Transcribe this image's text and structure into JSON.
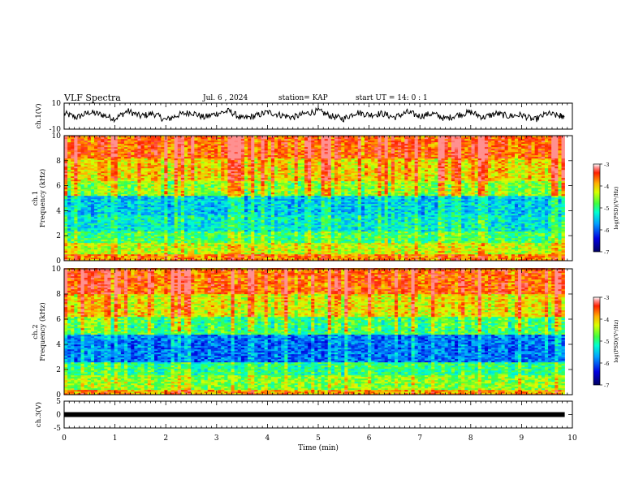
{
  "header": {
    "title": "VLF Spectra",
    "date": "Jul. 6 , 2024",
    "station": "station= KAP",
    "start": "start UT =  14: 0 : 1"
  },
  "colors": {
    "colormap": [
      "#000060",
      "#0000d8",
      "#0050ff",
      "#00c8ff",
      "#00ffd0",
      "#40ff40",
      "#c8ff00",
      "#ffd000",
      "#ff5000",
      "#e00000",
      "#ffffff"
    ]
  },
  "chart_data": [
    {
      "id": "ch1_waveform",
      "type": "line",
      "ylabel": "ch.1(V)",
      "ylim": [
        -10,
        10
      ],
      "yticks": [
        "10",
        "-10"
      ],
      "xlim": [
        0,
        10
      ],
      "x": [
        0,
        0.25,
        0.5,
        0.75,
        1,
        1.25,
        1.5,
        1.75,
        2,
        2.25,
        2.5,
        2.75,
        3,
        3.25,
        3.5,
        3.75,
        4,
        4.25,
        4.5,
        4.75,
        5,
        5.25,
        5.5,
        5.75,
        6,
        6.25,
        6.5,
        6.75,
        7,
        7.25,
        7.5,
        7.75,
        8,
        8.25,
        8.5,
        8.75,
        9,
        9.25,
        9.5,
        9.75
      ],
      "y": [
        2,
        -1,
        3,
        1,
        -2,
        4,
        0,
        2,
        -3,
        1,
        3,
        -1,
        2,
        4,
        -2,
        0,
        3,
        1,
        -1,
        2,
        4,
        0,
        -2,
        3,
        1,
        2,
        -1,
        3,
        0,
        2,
        -2,
        1,
        3,
        -1,
        2,
        0,
        1,
        -3,
        2,
        0
      ]
    },
    {
      "id": "ch1_spectrogram",
      "type": "heatmap",
      "ylabel": "ch.1\nFrequency (kHz)",
      "ylim": [
        0,
        10
      ],
      "yticks": [
        "0",
        "2",
        "4",
        "6",
        "8",
        "10"
      ],
      "xlim": [
        0,
        10
      ],
      "colorbar": {
        "label": "log(PSD)(V²/Hz)",
        "range": [
          -7,
          -3
        ],
        "ticks": [
          "-3",
          "-4",
          "-5",
          "-6",
          "-7"
        ]
      },
      "freq_bands": [
        {
          "f": [
            0,
            0.5
          ],
          "level": -3.8
        },
        {
          "f": [
            0.5,
            1.4
          ],
          "level": -4.4
        },
        {
          "f": [
            1.4,
            2.4
          ],
          "level": -4.9
        },
        {
          "f": [
            2.4,
            3.6
          ],
          "level": -5.3
        },
        {
          "f": [
            3.6,
            5.2
          ],
          "level": -5.5
        },
        {
          "f": [
            5.2,
            6.4
          ],
          "level": -4.6
        },
        {
          "f": [
            6.4,
            8.2
          ],
          "level": -4.1
        },
        {
          "f": [
            8.2,
            10
          ],
          "level": -3.6
        }
      ]
    },
    {
      "id": "ch2_spectrogram",
      "type": "heatmap",
      "ylabel": "ch.2\nFrequency (kHz)",
      "ylim": [
        0,
        10
      ],
      "yticks": [
        "0",
        "2",
        "4",
        "6",
        "8",
        "10"
      ],
      "xlim": [
        0,
        10
      ],
      "colorbar": {
        "label": "log(PSD)(V²/Hz)",
        "range": [
          -7,
          -3
        ],
        "ticks": [
          "-3",
          "-4",
          "-5",
          "-6",
          "-7"
        ]
      },
      "freq_bands": [
        {
          "f": [
            0,
            0.4
          ],
          "level": -3.9
        },
        {
          "f": [
            0.4,
            1.6
          ],
          "level": -4.6
        },
        {
          "f": [
            1.6,
            2.6
          ],
          "level": -5.0
        },
        {
          "f": [
            2.6,
            4.8
          ],
          "level": -5.9
        },
        {
          "f": [
            4.8,
            6.2
          ],
          "level": -4.9
        },
        {
          "f": [
            6.2,
            8.0
          ],
          "level": -4.2
        },
        {
          "f": [
            8.0,
            10
          ],
          "level": -3.6
        }
      ]
    },
    {
      "id": "ch3_waveform",
      "type": "line",
      "ylabel": "ch.3(V)",
      "ylim": [
        -5,
        5
      ],
      "yticks": [
        "5",
        "0",
        "-5"
      ],
      "xlim": [
        0,
        10
      ],
      "xlabel": "Time (min)",
      "xticks": [
        "0",
        "1",
        "2",
        "3",
        "4",
        "5",
        "6",
        "7",
        "8",
        "9",
        "10"
      ],
      "constant_value": 0
    }
  ]
}
